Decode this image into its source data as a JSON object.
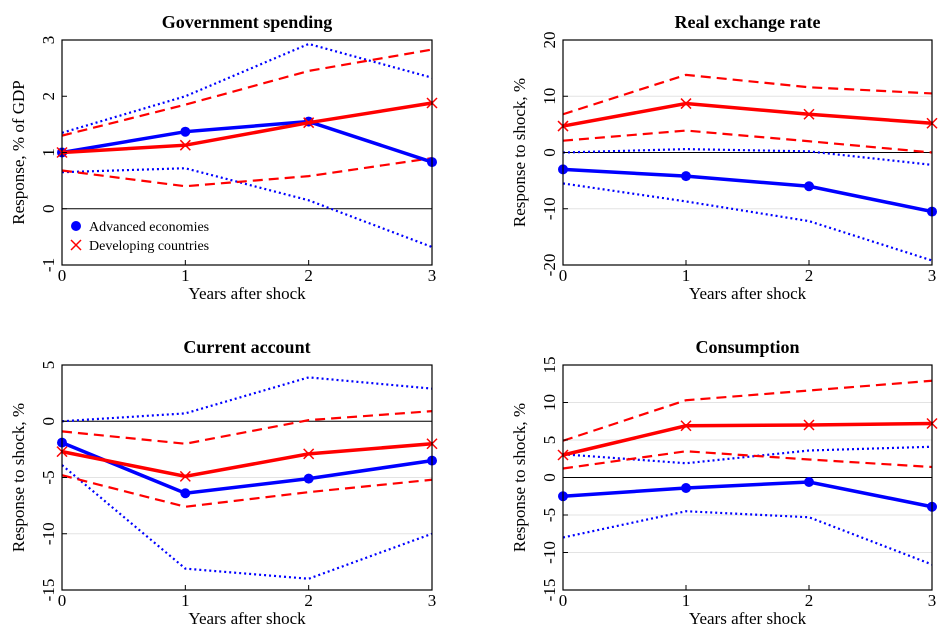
{
  "chart_data": [
    {
      "type": "line",
      "title": "Government spending",
      "xlabel": "Years after shock",
      "ylabel": "Response, % of GDP",
      "x": [
        0,
        1,
        2,
        3
      ],
      "xlim": [
        0,
        3
      ],
      "xticks": [
        0,
        1,
        2,
        3
      ],
      "ylim": [
        -1,
        3
      ],
      "yticks": [
        -1,
        0,
        1,
        2,
        3
      ],
      "grid": false,
      "zero_line": true,
      "legend": "lower left",
      "series": [
        {
          "name": "Advanced economies",
          "color": "#0000ff",
          "marker": "circle",
          "band_style": "dotted",
          "values": [
            1.0,
            1.37,
            1.55,
            0.83
          ],
          "upper": [
            1.35,
            2.0,
            2.93,
            2.33
          ],
          "lower": [
            0.65,
            0.72,
            0.15,
            -0.68
          ]
        },
        {
          "name": "Developing countries",
          "color": "#ff0000",
          "marker": "x",
          "band_style": "dashed",
          "values": [
            1.0,
            1.13,
            1.53,
            1.88
          ],
          "upper": [
            1.3,
            1.85,
            2.45,
            2.83
          ],
          "lower": [
            0.68,
            0.4,
            0.58,
            0.9
          ]
        }
      ]
    },
    {
      "type": "line",
      "title": "Real exchange rate",
      "xlabel": "Years after shock",
      "ylabel": "Response to shock, %",
      "x": [
        0,
        1,
        2,
        3
      ],
      "xlim": [
        0,
        3
      ],
      "xticks": [
        0,
        1,
        2,
        3
      ],
      "ylim": [
        -20,
        20
      ],
      "yticks": [
        -20,
        -10,
        0,
        10,
        20
      ],
      "grid": true,
      "zero_line": true,
      "series": [
        {
          "color": "#0000ff",
          "marker": "circle",
          "band_style": "dotted",
          "values": [
            -3.0,
            -4.2,
            -6.0,
            -10.5
          ],
          "upper": [
            0,
            0.6,
            0.2,
            -2.2
          ],
          "lower": [
            -5.5,
            -8.7,
            -12.2,
            -19.2
          ]
        },
        {
          "color": "#ff0000",
          "marker": "x",
          "band_style": "dashed",
          "values": [
            4.7,
            8.7,
            6.8,
            5.2
          ],
          "upper": [
            6.8,
            13.8,
            11.6,
            10.5
          ],
          "lower": [
            2.1,
            3.9,
            2.0,
            0.0
          ]
        }
      ]
    },
    {
      "type": "line",
      "title": "Current account",
      "xlabel": "Years after shock",
      "ylabel": "Response to shock, %",
      "x": [
        0,
        1,
        2,
        3
      ],
      "xlim": [
        0,
        3
      ],
      "xticks": [
        0,
        1,
        2,
        3
      ],
      "ylim": [
        -15,
        5
      ],
      "yticks": [
        -15,
        -10,
        -5,
        0,
        5
      ],
      "grid": true,
      "zero_line": true,
      "series": [
        {
          "color": "#0000ff",
          "marker": "circle",
          "band_style": "dotted",
          "values": [
            -1.9,
            -6.4,
            -5.1,
            -3.5
          ],
          "upper": [
            0,
            0.7,
            3.9,
            2.9
          ],
          "lower": [
            -3.9,
            -13.1,
            -14.0,
            -10.0
          ]
        },
        {
          "color": "#ff0000",
          "marker": "x",
          "band_style": "dashed",
          "values": [
            -2.7,
            -4.9,
            -2.9,
            -2.0
          ],
          "upper": [
            -0.9,
            -2.0,
            0.1,
            0.9
          ],
          "lower": [
            -4.8,
            -7.6,
            -6.3,
            -5.2
          ]
        }
      ]
    },
    {
      "type": "line",
      "title": "Consumption",
      "xlabel": "Years after shock",
      "ylabel": "Response to shock, %",
      "x": [
        0,
        1,
        2,
        3
      ],
      "xlim": [
        0,
        3
      ],
      "xticks": [
        0,
        1,
        2,
        3
      ],
      "ylim": [
        -15,
        15
      ],
      "yticks": [
        -15,
        -10,
        -5,
        0,
        5,
        10,
        15
      ],
      "grid": true,
      "zero_line": true,
      "series": [
        {
          "color": "#0000ff",
          "marker": "circle",
          "band_style": "dotted",
          "values": [
            -2.5,
            -1.4,
            -0.6,
            -3.9
          ],
          "upper": [
            3.1,
            1.9,
            3.6,
            4.1
          ],
          "lower": [
            -8.0,
            -4.5,
            -5.3,
            -11.6
          ]
        },
        {
          "color": "#ff0000",
          "marker": "x",
          "band_style": "dashed",
          "values": [
            3.0,
            6.9,
            7.0,
            7.2
          ],
          "upper": [
            4.9,
            10.3,
            11.6,
            12.9
          ],
          "lower": [
            1.2,
            3.5,
            2.4,
            1.4
          ]
        }
      ]
    }
  ]
}
